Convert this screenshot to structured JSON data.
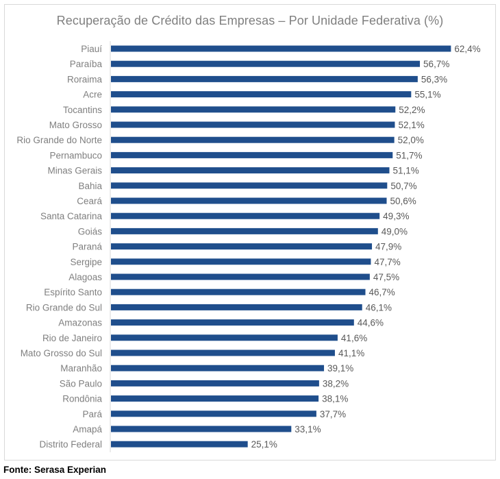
{
  "chart_data": {
    "type": "bar",
    "orientation": "horizontal",
    "title": "Recuperação de Crédito das Empresas – Por Unidade Federativa (%)",
    "categories": [
      "Piauí",
      "Paraíba",
      "Roraima",
      "Acre",
      "Tocantins",
      "Mato Grosso",
      "Rio Grande do Norte",
      "Pernambuco",
      "Minas Gerais",
      "Bahia",
      "Ceará",
      "Santa Catarina",
      "Goiás",
      "Paraná",
      "Sergipe",
      "Alagoas",
      "Espírito Santo",
      "Rio Grande do Sul",
      "Amazonas",
      "Rio de Janeiro",
      "Mato Grosso do Sul",
      "Maranhão",
      "São Paulo",
      "Rondônia",
      "Pará",
      "Amapá",
      "Distrito Federal"
    ],
    "values": [
      62.4,
      56.7,
      56.3,
      55.1,
      52.2,
      52.1,
      52.0,
      51.7,
      51.1,
      50.7,
      50.6,
      49.3,
      49.0,
      47.9,
      47.7,
      47.5,
      46.7,
      46.1,
      44.6,
      41.6,
      41.1,
      39.1,
      38.2,
      38.1,
      37.7,
      33.1,
      25.1
    ],
    "value_labels": [
      "62,4%",
      "56,7%",
      "56,3%",
      "55,1%",
      "52,2%",
      "52,1%",
      "52,0%",
      "51,7%",
      "51,1%",
      "50,7%",
      "50,6%",
      "49,3%",
      "49,0%",
      "47,9%",
      "47,7%",
      "47,5%",
      "46,7%",
      "46,1%",
      "44,6%",
      "41,6%",
      "41,1%",
      "39,1%",
      "38,2%",
      "38,1%",
      "37,7%",
      "33,1%",
      "25,1%"
    ],
    "bar_color": "#1f4e8c",
    "grid": false,
    "legend": "none"
  },
  "source": "Fonte: Serasa Experian"
}
